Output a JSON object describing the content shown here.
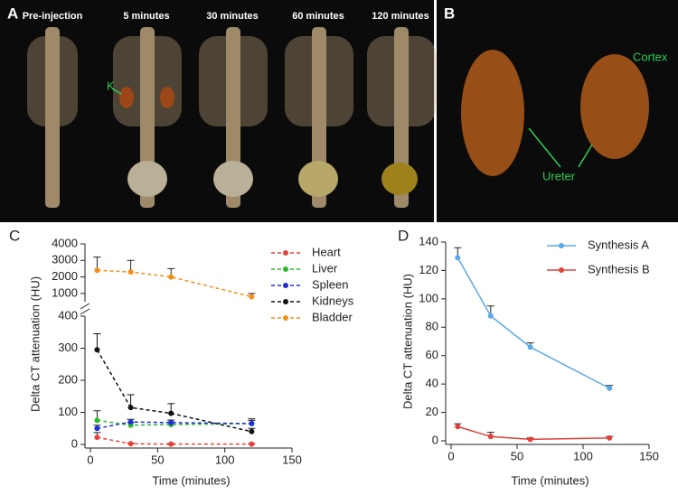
{
  "panel_a": {
    "panel_label": "A",
    "captions": [
      "Pre-injection",
      "5 minutes",
      "30 minutes",
      "60 minutes",
      "120 minutes"
    ],
    "annotation": "K"
  },
  "panel_b": {
    "panel_label": "B",
    "annotations": [
      "Cortex",
      "Ureter"
    ]
  },
  "chart_data": [
    {
      "type": "line",
      "panel_label": "C",
      "x_label": "Time (minutes)",
      "y_label": "Delta CT attenuation (HU)",
      "dashed": true,
      "broken_axis": true,
      "x": [
        5,
        30,
        60,
        120
      ],
      "xlim": [
        0,
        150
      ],
      "xticks": [
        0,
        50,
        100,
        150
      ],
      "ylim": [
        0,
        400
      ],
      "yticks": [
        0,
        100,
        200,
        300,
        400
      ],
      "ylim_upper": [
        500,
        4000
      ],
      "yticks_upper": [
        1000,
        2000,
        3000,
        4000
      ],
      "series": [
        {
          "name": "Heart",
          "color": "#e8413c",
          "values": [
            22,
            2,
            1,
            1
          ],
          "errors": [
            15,
            2,
            1,
            1
          ]
        },
        {
          "name": "Liver",
          "color": "#2db82d",
          "values": [
            75,
            60,
            62,
            65
          ],
          "errors": [
            30,
            8,
            8,
            10
          ]
        },
        {
          "name": "Spleen",
          "color": "#1f2fd6",
          "values": [
            50,
            70,
            68,
            65
          ],
          "errors": [
            10,
            8,
            8,
            15
          ]
        },
        {
          "name": "Kidneys",
          "color": "#111111",
          "values": [
            295,
            115,
            97,
            40
          ],
          "errors": [
            50,
            40,
            30,
            10
          ]
        },
        {
          "name": "Bladder",
          "color": "#f0901a",
          "values": [
            2400,
            2300,
            2000,
            800
          ],
          "errors": [
            800,
            700,
            500,
            200
          ]
        }
      ]
    },
    {
      "type": "line",
      "panel_label": "D",
      "x_label": "Time (minutes)",
      "y_label": "Delta CT attenuation (HU)",
      "dashed": false,
      "x": [
        5,
        30,
        60,
        120
      ],
      "xlim": [
        0,
        150
      ],
      "xticks": [
        0,
        50,
        100,
        150
      ],
      "ylim": [
        0,
        140
      ],
      "yticks": [
        0,
        20,
        40,
        60,
        80,
        100,
        120,
        140
      ],
      "series": [
        {
          "name": "Synthesis A",
          "color": "#5aa9e6",
          "values": [
            129,
            88,
            66,
            37
          ],
          "errors": [
            7,
            7,
            3,
            2
          ]
        },
        {
          "name": "Synthesis B",
          "color": "#e0413a",
          "values": [
            10,
            3,
            1,
            2
          ],
          "errors": [
            2,
            3,
            1,
            1
          ]
        }
      ]
    }
  ]
}
